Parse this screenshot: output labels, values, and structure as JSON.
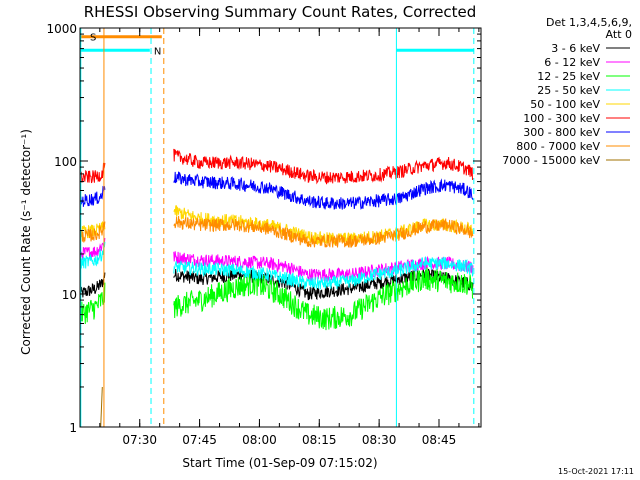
{
  "chart_data": {
    "type": "line",
    "title": "RHESSI Observing Summary Count Rates, Corrected",
    "xlabel": "Start Time (01-Sep-09 07:15:02)",
    "ylabel": "Corrected Count Rate (s⁻¹ detector⁻¹)",
    "yscale": "log",
    "xlim": [
      0,
      100.5
    ],
    "ylim": [
      1,
      1000
    ],
    "x_unit": "minutes after 07:15:02",
    "x_ticks": [
      {
        "value": 14.97,
        "label": "07:30"
      },
      {
        "value": 29.97,
        "label": "07:45"
      },
      {
        "value": 44.97,
        "label": "08:00"
      },
      {
        "value": 59.97,
        "label": "08:15"
      },
      {
        "value": 74.97,
        "label": "08:30"
      },
      {
        "value": 89.97,
        "label": "08:45"
      }
    ],
    "y_ticks": [
      {
        "value": 1,
        "label": "1"
      },
      {
        "value": 10,
        "label": "10"
      },
      {
        "value": 100,
        "label": "100"
      },
      {
        "value": 1000,
        "label": "1000"
      }
    ],
    "legend": {
      "placement": "right",
      "header": [
        "Det 1,3,4,5,6,9,",
        "Att 0"
      ]
    },
    "series": [
      {
        "name": "3 - 6 keV",
        "color": "#000000",
        "points": [
          [
            0,
            10
          ],
          [
            4,
            11
          ],
          [
            5.5,
            12
          ],
          [
            6.3,
            14
          ],
          [
            20.5,
            null
          ],
          [
            23.5,
            14
          ],
          [
            30,
            13
          ],
          [
            40,
            14
          ],
          [
            47,
            13
          ],
          [
            52,
            12
          ],
          [
            57,
            10
          ],
          [
            62,
            10.5
          ],
          [
            68,
            11
          ],
          [
            74,
            12
          ],
          [
            80,
            13
          ],
          [
            86,
            14
          ],
          [
            92,
            13
          ],
          [
            97,
            12
          ],
          [
            98.5,
            11.5
          ]
        ]
      },
      {
        "name": "6 - 12 keV",
        "color": "#ff00ff",
        "points": [
          [
            0,
            20
          ],
          [
            4,
            21
          ],
          [
            5.5,
            23
          ],
          [
            6.3,
            26
          ],
          [
            20.5,
            null
          ],
          [
            23.5,
            19
          ],
          [
            30,
            18
          ],
          [
            40,
            17.5
          ],
          [
            47,
            17
          ],
          [
            52,
            16
          ],
          [
            57,
            14
          ],
          [
            62,
            14
          ],
          [
            68,
            14
          ],
          [
            74,
            15
          ],
          [
            80,
            16
          ],
          [
            86,
            17
          ],
          [
            92,
            17
          ],
          [
            97,
            16
          ],
          [
            98.5,
            16
          ]
        ]
      },
      {
        "name": "12 - 25 keV",
        "color": "#00ff00",
        "points": [
          [
            0,
            7
          ],
          [
            4,
            8
          ],
          [
            5.5,
            9
          ],
          [
            6.3,
            10
          ],
          [
            20.5,
            null
          ],
          [
            23.5,
            8
          ],
          [
            30,
            9
          ],
          [
            40,
            11.5
          ],
          [
            44,
            12
          ],
          [
            50,
            10
          ],
          [
            57,
            7
          ],
          [
            62,
            6.5
          ],
          [
            68,
            7
          ],
          [
            74,
            9
          ],
          [
            80,
            11
          ],
          [
            86,
            13
          ],
          [
            92,
            12.5
          ],
          [
            97,
            12
          ],
          [
            98.5,
            11
          ]
        ]
      },
      {
        "name": "25 - 50 keV",
        "color": "#00ffff",
        "points": [
          [
            0,
            17
          ],
          [
            4,
            18
          ],
          [
            5.5,
            20
          ],
          [
            6.3,
            24
          ],
          [
            20.5,
            null
          ],
          [
            23.5,
            16
          ],
          [
            30,
            15.5
          ],
          [
            40,
            15
          ],
          [
            47,
            14
          ],
          [
            52,
            13
          ],
          [
            57,
            12
          ],
          [
            62,
            12
          ],
          [
            68,
            12.5
          ],
          [
            74,
            14
          ],
          [
            80,
            15
          ],
          [
            86,
            17
          ],
          [
            92,
            17
          ],
          [
            97,
            16
          ],
          [
            98.5,
            15
          ]
        ]
      },
      {
        "name": "50 - 100 keV",
        "color": "#ffd700",
        "points": [
          [
            0,
            29
          ],
          [
            4,
            30
          ],
          [
            5.5,
            31
          ],
          [
            6.3,
            34
          ],
          [
            20.5,
            null
          ],
          [
            23.5,
            42
          ],
          [
            30,
            37
          ],
          [
            40,
            35
          ],
          [
            47,
            33
          ],
          [
            52,
            30
          ],
          [
            57,
            27
          ],
          [
            62,
            26
          ],
          [
            68,
            26
          ],
          [
            74,
            27
          ],
          [
            80,
            29
          ],
          [
            86,
            33
          ],
          [
            92,
            33
          ],
          [
            97,
            31
          ],
          [
            98.5,
            30
          ]
        ]
      },
      {
        "name": "100 - 300 keV",
        "color": "#ff0000",
        "points": [
          [
            0,
            75
          ],
          [
            4,
            76
          ],
          [
            5.5,
            80
          ],
          [
            6.3,
            100
          ],
          [
            20.5,
            null
          ],
          [
            23.5,
            110
          ],
          [
            30,
            97
          ],
          [
            40,
            97
          ],
          [
            47,
            92
          ],
          [
            52,
            85
          ],
          [
            57,
            77
          ],
          [
            62,
            75
          ],
          [
            68,
            76
          ],
          [
            74,
            78
          ],
          [
            80,
            83
          ],
          [
            86,
            92
          ],
          [
            92,
            97
          ],
          [
            97,
            87
          ],
          [
            98.5,
            80
          ]
        ]
      },
      {
        "name": "300 - 800 keV",
        "color": "#0000ff",
        "points": [
          [
            0,
            50
          ],
          [
            4,
            52
          ],
          [
            5.5,
            55
          ],
          [
            6.3,
            68
          ],
          [
            20.5,
            null
          ],
          [
            23.5,
            75
          ],
          [
            30,
            70
          ],
          [
            40,
            67
          ],
          [
            47,
            63
          ],
          [
            52,
            56
          ],
          [
            57,
            50
          ],
          [
            62,
            48
          ],
          [
            68,
            48
          ],
          [
            74,
            50
          ],
          [
            80,
            52
          ],
          [
            86,
            62
          ],
          [
            92,
            66
          ],
          [
            97,
            60
          ],
          [
            98.5,
            55
          ]
        ]
      },
      {
        "name": "800 - 7000 keV",
        "color": "#ff8c00",
        "points": [
          [
            0,
            27
          ],
          [
            4,
            28
          ],
          [
            5.5,
            30
          ],
          [
            6.3,
            35
          ],
          [
            20.5,
            null
          ],
          [
            23.5,
            35
          ],
          [
            30,
            33
          ],
          [
            40,
            33
          ],
          [
            47,
            31
          ],
          [
            52,
            28
          ],
          [
            57,
            25
          ],
          [
            62,
            25
          ],
          [
            68,
            25
          ],
          [
            74,
            26
          ],
          [
            80,
            28
          ],
          [
            86,
            32
          ],
          [
            92,
            33
          ],
          [
            97,
            30
          ],
          [
            98.5,
            28
          ]
        ]
      },
      {
        "name": "7000 - 15000 keV",
        "color": "#a07000",
        "points": [
          [
            5.2,
            1
          ],
          [
            5.6,
            2
          ]
        ]
      }
    ],
    "flags": [
      {
        "label": "S",
        "color": "#ff8c00",
        "start": 0,
        "end": 20.5,
        "level": 860
      },
      {
        "label": "N",
        "color": "#00ffff",
        "start": 0,
        "end": 17.5,
        "level": 680
      },
      {
        "label": "",
        "color": "#00ffff",
        "start": 79.3,
        "end": 98.7,
        "level": 680
      }
    ],
    "markers": [
      {
        "x": 0.2,
        "color": "#00ffff",
        "style": "solid"
      },
      {
        "x": 6.0,
        "color": "#ff8c00",
        "style": "solid"
      },
      {
        "x": 17.8,
        "color": "#00ffff",
        "style": "dashed"
      },
      {
        "x": 21.0,
        "color": "#ff8c00",
        "style": "dashed"
      },
      {
        "x": 79.3,
        "color": "#00ffff",
        "style": "solid"
      },
      {
        "x": 98.7,
        "color": "#00ffff",
        "style": "dashed"
      }
    ]
  },
  "footer": {
    "timestamp": "15-Oct-2021 17:11"
  }
}
